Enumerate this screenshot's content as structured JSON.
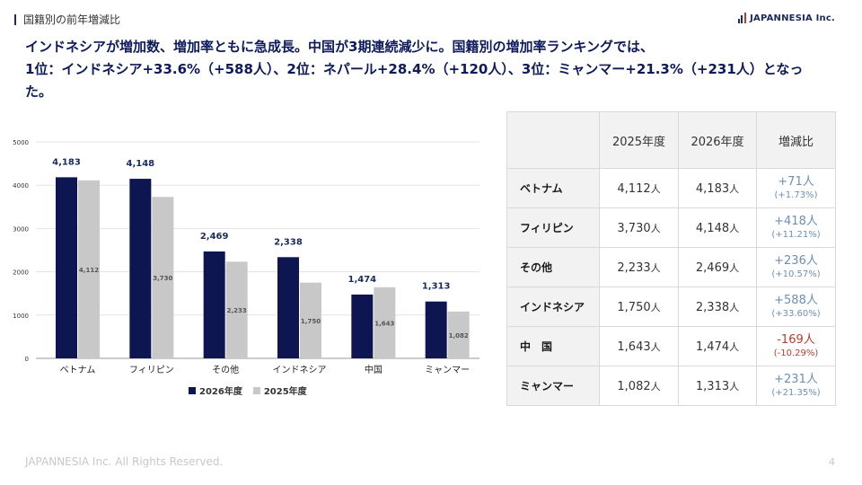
{
  "header": {
    "section_label": "国籍別の前年増減比",
    "logo_text": "JAPANNESIA Inc."
  },
  "headline": {
    "line1": "インドネシアが増加数、増加率ともに急成長。中国が3期連続減少に。国籍別の増加率ランキングでは、",
    "line2": "1位：インドネシア+33.6%（+588人）、2位：ネパール+28.4%（+120人）、3位：ミャンマー+21.3%（+231人）となっ",
    "line3": "た。"
  },
  "chart_data": {
    "type": "bar",
    "categories": [
      "ベトナム",
      "フィリピン",
      "その他",
      "インドネシア",
      "中国",
      "ミャンマー"
    ],
    "series": [
      {
        "name": "2026年度",
        "values": [
          4183,
          4148,
          2469,
          2338,
          1474,
          1313
        ],
        "color": "#0d1650"
      },
      {
        "name": "2025年度",
        "values": [
          4112,
          3730,
          2233,
          1750,
          1643,
          1082
        ],
        "color": "#c8c8c8"
      }
    ],
    "data_labels_2026": [
      "4,183",
      "4,148",
      "2,469",
      "2,338",
      "1,474",
      "1,313"
    ],
    "data_labels_2025": [
      "4,112",
      "3,730",
      "2,233",
      "1,750",
      "1,643",
      "1,082"
    ],
    "y_ticks": [
      "0",
      "1000",
      "2000",
      "3000",
      "4000",
      "5000"
    ],
    "ylim": [
      0,
      5000
    ],
    "grid": true,
    "legend": "bottom"
  },
  "table": {
    "headers": [
      "",
      "2025年度",
      "2026年度",
      "増減比"
    ],
    "unit": "人",
    "rows": [
      {
        "label": "ベトナム",
        "y2025": "4,112",
        "y2026": "4,183",
        "change": "+71人",
        "rate": "(+1.73%)",
        "negative": false
      },
      {
        "label": "フィリピン",
        "y2025": "3,730",
        "y2026": "4,148",
        "change": "+418人",
        "rate": "(+11.21%)",
        "negative": false
      },
      {
        "label": "その他",
        "y2025": "2,233",
        "y2026": "2,469",
        "change": "+236人",
        "rate": "(+10.57%)",
        "negative": false
      },
      {
        "label": "インドネシア",
        "y2025": "1,750",
        "y2026": "2,338",
        "change": "+588人",
        "rate": "(+33.60%)",
        "negative": false
      },
      {
        "label": "中　国",
        "y2025": "1,643",
        "y2026": "1,474",
        "change": "-169人",
        "rate": "(-10.29%)",
        "negative": true
      },
      {
        "label": "ミャンマー",
        "y2025": "1,082",
        "y2026": "1,313",
        "change": "+231人",
        "rate": "(+21.35%)",
        "negative": false
      }
    ]
  },
  "footer": {
    "copyright": "JAPANNESIA Inc. All Rights Reserved.",
    "page": "4"
  }
}
